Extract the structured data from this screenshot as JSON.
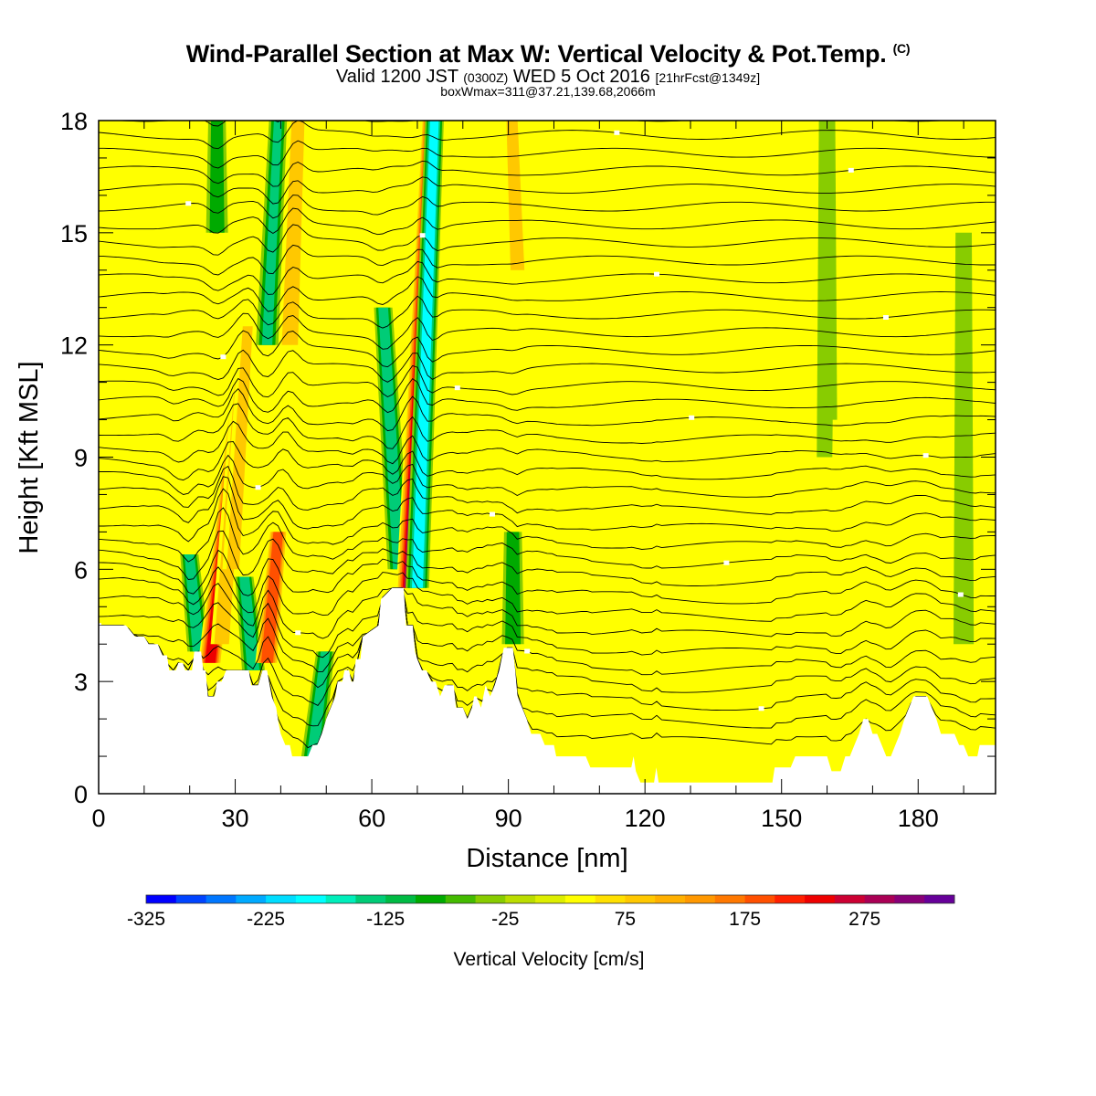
{
  "header": {
    "title": "Wind-Parallel Section at Max W: Vertical Velocity & Pot.Temp.",
    "copyright_mark": "(C)",
    "valid_prefix": "Valid 1200 JST",
    "valid_utc": "(0300Z)",
    "valid_date": "WED 5 Oct 2016",
    "forecast_info": "[21hrFcst@1349z]",
    "box_info": "boxWmax=311@37.21,139.68,2066m"
  },
  "chart_data": {
    "type": "heatmap",
    "xlabel": "Distance [nm]",
    "ylabel": "Height [Kft MSL]",
    "xlim": [
      0,
      197
    ],
    "ylim": [
      0,
      18
    ],
    "x_ticks": [
      0,
      30,
      60,
      90,
      120,
      150,
      180
    ],
    "y_ticks": [
      0,
      3,
      6,
      9,
      12,
      15,
      18
    ],
    "x_minor_step": 10,
    "y_minor_step": 1,
    "background_w": 0,
    "terrain_height_kft": [
      [
        0,
        4.5
      ],
      [
        6,
        4.5
      ],
      [
        8,
        4.2
      ],
      [
        10,
        4.2
      ],
      [
        11,
        4.0
      ],
      [
        13,
        4.0
      ],
      [
        14,
        3.7
      ],
      [
        15,
        3.7
      ],
      [
        15.5,
        3.3
      ],
      [
        17,
        3.3
      ],
      [
        17.5,
        3.5
      ],
      [
        18.5,
        3.5
      ],
      [
        19,
        3.3
      ],
      [
        20.5,
        3.3
      ],
      [
        21,
        3.8
      ],
      [
        22.5,
        3.8
      ],
      [
        23,
        3.3
      ],
      [
        23.5,
        3.3
      ],
      [
        24,
        2.6
      ],
      [
        25.5,
        2.6
      ],
      [
        26,
        3.0
      ],
      [
        27,
        3.0
      ],
      [
        28,
        3.3
      ],
      [
        33,
        3.3
      ],
      [
        33.5,
        2.9
      ],
      [
        35,
        2.9
      ],
      [
        36,
        3.3
      ],
      [
        37,
        3.3
      ],
      [
        38,
        2.6
      ],
      [
        39,
        2.3
      ],
      [
        39.5,
        1.9
      ],
      [
        40,
        1.6
      ],
      [
        41,
        1.3
      ],
      [
        42,
        1.3
      ],
      [
        42.5,
        1.0
      ],
      [
        46,
        1.0
      ],
      [
        47,
        1.3
      ],
      [
        48,
        1.3
      ],
      [
        49,
        1.6
      ],
      [
        50,
        2.0
      ],
      [
        51,
        2.3
      ],
      [
        52,
        2.6
      ],
      [
        52.5,
        3.0
      ],
      [
        53.5,
        3.0
      ],
      [
        54,
        3.3
      ],
      [
        55,
        3.3
      ],
      [
        55.5,
        3.0
      ],
      [
        56,
        3.0
      ],
      [
        56.5,
        3.6
      ],
      [
        57.5,
        3.6
      ],
      [
        58,
        4.2
      ],
      [
        61.5,
        4.5
      ],
      [
        62,
        5.2
      ],
      [
        64.5,
        5.5
      ],
      [
        67,
        5.5
      ],
      [
        67.5,
        4.5
      ],
      [
        69,
        4.5
      ],
      [
        69.5,
        3.8
      ],
      [
        70,
        3.6
      ],
      [
        71,
        3.3
      ],
      [
        72,
        3.3
      ],
      [
        73,
        3.0
      ],
      [
        74,
        3.0
      ],
      [
        75,
        2.6
      ],
      [
        76,
        2.9
      ],
      [
        78,
        2.9
      ],
      [
        78.5,
        2.3
      ],
      [
        80,
        2.3
      ],
      [
        81,
        2.0
      ],
      [
        82,
        2.3
      ],
      [
        82.5,
        2.6
      ],
      [
        83,
        2.6
      ],
      [
        84,
        2.3
      ],
      [
        84.5,
        2.6
      ],
      [
        85,
        2.9
      ],
      [
        86,
        2.6
      ],
      [
        87,
        2.9
      ],
      [
        88,
        3.3
      ],
      [
        89,
        3.9
      ],
      [
        91,
        3.9
      ],
      [
        91.5,
        3.3
      ],
      [
        92,
        2.6
      ],
      [
        93,
        2.3
      ],
      [
        94,
        2.0
      ],
      [
        95,
        1.6
      ],
      [
        97,
        1.6
      ],
      [
        98,
        1.3
      ],
      [
        100,
        1.3
      ],
      [
        100.5,
        1.0
      ],
      [
        107,
        1.0
      ],
      [
        108,
        0.7
      ],
      [
        117,
        0.7
      ],
      [
        117.5,
        1.0
      ],
      [
        118,
        0.6
      ],
      [
        119,
        0.3
      ],
      [
        122,
        0.3
      ],
      [
        122.5,
        0.7
      ],
      [
        123,
        0.3
      ],
      [
        148,
        0.3
      ],
      [
        148.5,
        0.7
      ],
      [
        152,
        0.7
      ],
      [
        153,
        1.0
      ],
      [
        160,
        1.0
      ],
      [
        161,
        0.6
      ],
      [
        163,
        0.6
      ],
      [
        164,
        1.0
      ],
      [
        165,
        1.0
      ],
      [
        166,
        1.3
      ],
      [
        167,
        1.6
      ],
      [
        168,
        2.0
      ],
      [
        169,
        2.0
      ],
      [
        170,
        1.6
      ],
      [
        171,
        1.6
      ],
      [
        172,
        1.3
      ],
      [
        173,
        1.0
      ],
      [
        174,
        1.0
      ],
      [
        175,
        1.3
      ],
      [
        176,
        1.6
      ],
      [
        177,
        2.0
      ],
      [
        178,
        2.3
      ],
      [
        179,
        2.6
      ],
      [
        182,
        2.6
      ],
      [
        183,
        2.3
      ],
      [
        184,
        2.0
      ],
      [
        185,
        1.6
      ],
      [
        188,
        1.6
      ],
      [
        189,
        1.3
      ],
      [
        190,
        1.3
      ],
      [
        191,
        1.0
      ],
      [
        193,
        1.0
      ],
      [
        193.5,
        1.3
      ],
      [
        197,
        1.3
      ]
    ],
    "w_features": [
      {
        "x": 22,
        "ybot": 3.8,
        "ytop": 6.4,
        "w": -150,
        "tilt": -0.8
      },
      {
        "x": 24.5,
        "ybot": 3.5,
        "ytop": 10.0,
        "w": 260,
        "tilt": 0.9
      },
      {
        "x": 27,
        "ybot": 4.0,
        "ytop": 11.0,
        "w": 100,
        "tilt": 0.6
      },
      {
        "x": 29.5,
        "ybot": 6.0,
        "ytop": 12.5,
        "w": 75,
        "tilt": 0.5
      },
      {
        "x": 34,
        "ybot": 3.3,
        "ytop": 5.8,
        "w": -150,
        "tilt": -0.8
      },
      {
        "x": 37,
        "ybot": 3.5,
        "ytop": 7.0,
        "w": 220,
        "tilt": 0.7
      },
      {
        "x": 26,
        "ybot": 15.0,
        "ytop": 18,
        "w": -100,
        "tilt": 0
      },
      {
        "x": 37,
        "ybot": 12.0,
        "ytop": 18,
        "w": -125,
        "tilt": 0.4
      },
      {
        "x": 42,
        "ybot": 12.0,
        "ytop": 18,
        "w": 120,
        "tilt": 0.3
      },
      {
        "x": 47,
        "ybot": 1.0,
        "ytop": 3.8,
        "w": -140,
        "tilt": 1.0
      },
      {
        "x": 66,
        "ybot": 6.0,
        "ytop": 13.0,
        "w": -150,
        "tilt": -0.5
      },
      {
        "x": 68,
        "ybot": 5.5,
        "ytop": 18,
        "w": 280,
        "tilt": 0.4
      },
      {
        "x": 70,
        "ybot": 5.5,
        "ytop": 18,
        "w": -200,
        "tilt": 0.3
      },
      {
        "x": 91,
        "ybot": 4.0,
        "ytop": 7.0,
        "w": -110,
        "tilt": 0
      },
      {
        "x": 92,
        "ybot": 14.0,
        "ytop": 18,
        "w": 90,
        "tilt": -0.3
      },
      {
        "x": 3,
        "ybot": 5.0,
        "ytop": 15.0,
        "w": 60,
        "tilt": 0
      },
      {
        "x": 15,
        "ybot": 4.0,
        "ytop": 18,
        "w": 60,
        "tilt": 0
      },
      {
        "x": 105,
        "ybot": 4.0,
        "ytop": 17.0,
        "w": 45,
        "tilt": 0
      },
      {
        "x": 125,
        "ybot": 4.0,
        "ytop": 17.0,
        "w": 45,
        "tilt": 0
      },
      {
        "x": 160,
        "ybot": 9.0,
        "ytop": 18,
        "w": -60,
        "tilt": 0
      },
      {
        "x": 163,
        "ybot": 4.0,
        "ytop": 10.0,
        "w": 55,
        "tilt": 0
      },
      {
        "x": 190,
        "ybot": 4.0,
        "ytop": 15.0,
        "w": -55,
        "tilt": 0
      }
    ],
    "theta_contours": {
      "count": 36,
      "base_kft": 1.3,
      "spacing_kft": 0.48,
      "label_every": 2
    },
    "colorbar": {
      "title": "Vertical Velocity [cm/s]",
      "min": -325,
      "step": 25,
      "colors": [
        "#0000ff",
        "#0044ff",
        "#0077ff",
        "#00aaff",
        "#00ddff",
        "#00ffff",
        "#00eebb",
        "#00cc77",
        "#00bb44",
        "#00aa00",
        "#44bb00",
        "#88cc00",
        "#bbdd00",
        "#ddee00",
        "#ffff00",
        "#ffe000",
        "#ffc800",
        "#ffb000",
        "#ff9800",
        "#ff7800",
        "#ff5000",
        "#ff2000",
        "#ee0000",
        "#cc0033",
        "#aa0055",
        "#880077",
        "#660099"
      ],
      "labels": [
        "-325",
        "-225",
        "-125",
        "-25",
        "75",
        "175",
        "275"
      ]
    }
  }
}
